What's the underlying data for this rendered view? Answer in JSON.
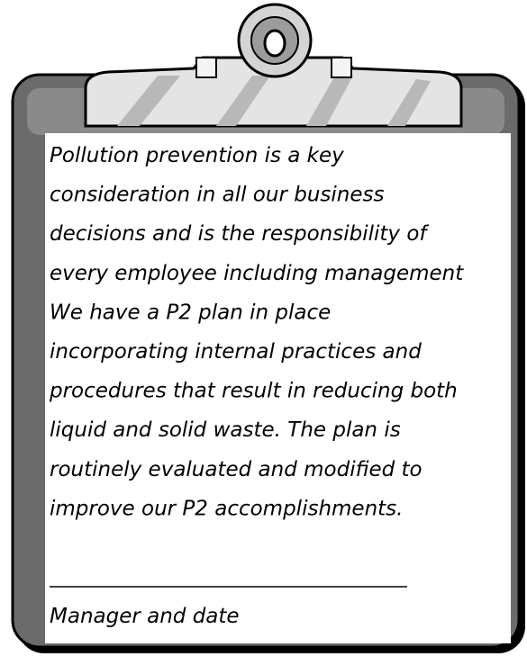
{
  "statement": {
    "lines": [
      "Pollution prevention is a key",
      "consideration in all our business",
      "decisions and is the responsibility of",
      "every employee including management",
      "We have a P2 plan in place",
      "incorporating internal practices and",
      "procedures that result in reducing both",
      "liquid and solid waste. The plan is",
      "routinely evaluated and modified to",
      "improve our P2 accomplishments."
    ]
  },
  "signature": {
    "label": "Manager and date"
  }
}
